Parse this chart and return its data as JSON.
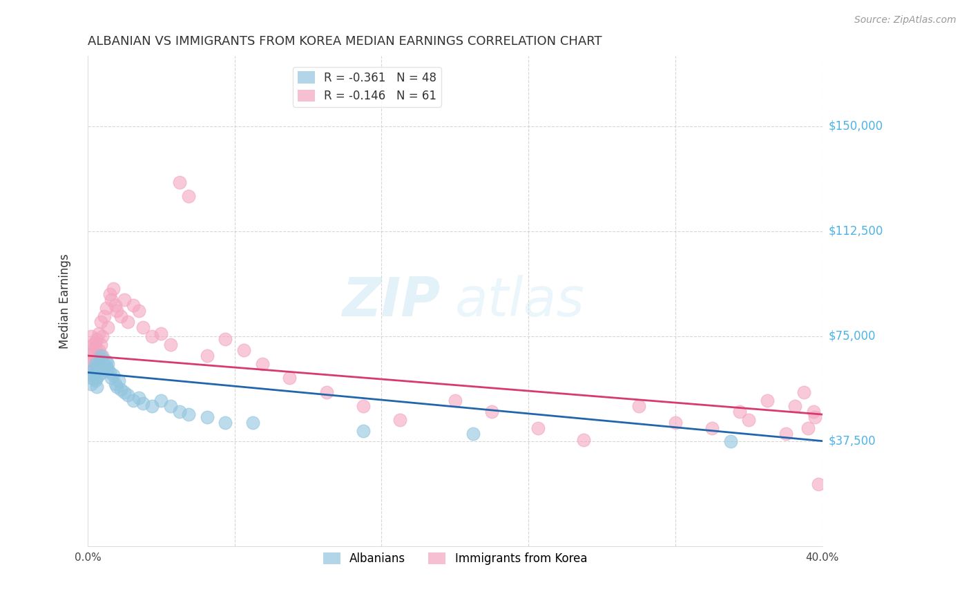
{
  "title": "ALBANIAN VS IMMIGRANTS FROM KOREA MEDIAN EARNINGS CORRELATION CHART",
  "source": "Source: ZipAtlas.com",
  "ylabel": "Median Earnings",
  "xlim": [
    0.0,
    0.4
  ],
  "ylim": [
    0,
    175000
  ],
  "yticks": [
    37500,
    75000,
    112500,
    150000
  ],
  "ytick_labels": [
    "$37,500",
    "$75,000",
    "$112,500",
    "$150,000"
  ],
  "xticks": [
    0.0,
    0.08,
    0.16,
    0.24,
    0.32,
    0.4
  ],
  "xtick_labels": [
    "0.0%",
    "",
    "",
    "",
    "",
    "40.0%"
  ],
  "watermark_zip": "ZIP",
  "watermark_atlas": "atlas",
  "legend_label_alb": "R = -0.361   N = 48",
  "legend_label_kor": "R = -0.146   N = 61",
  "bottom_legend_albanians": "Albanians",
  "bottom_legend_korea": "Immigrants from Korea",
  "albanian_color": "#92c5de",
  "korea_color": "#f4a6c0",
  "albanian_line_color": "#2166ac",
  "korea_line_color": "#d63a6e",
  "background_color": "#ffffff",
  "grid_color": "#cccccc",
  "title_color": "#333333",
  "ytick_label_color": "#4db3e6",
  "albanian_x": [
    0.001,
    0.002,
    0.002,
    0.003,
    0.003,
    0.004,
    0.004,
    0.004,
    0.005,
    0.005,
    0.005,
    0.006,
    0.006,
    0.006,
    0.007,
    0.007,
    0.007,
    0.008,
    0.008,
    0.009,
    0.009,
    0.01,
    0.01,
    0.011,
    0.011,
    0.012,
    0.013,
    0.014,
    0.015,
    0.016,
    0.017,
    0.018,
    0.02,
    0.022,
    0.025,
    0.028,
    0.03,
    0.035,
    0.04,
    0.045,
    0.05,
    0.055,
    0.065,
    0.075,
    0.09,
    0.15,
    0.21,
    0.35
  ],
  "albanian_y": [
    62000,
    60000,
    58000,
    63000,
    61000,
    65000,
    59000,
    62000,
    64000,
    60000,
    57000,
    63000,
    61000,
    65000,
    67000,
    66000,
    68000,
    64000,
    62000,
    65000,
    63000,
    64000,
    66000,
    65000,
    63000,
    62000,
    60000,
    61000,
    58000,
    57000,
    59000,
    56000,
    55000,
    54000,
    52000,
    53000,
    51000,
    50000,
    52000,
    50000,
    48000,
    47000,
    46000,
    44000,
    44000,
    41000,
    40000,
    37500
  ],
  "korea_x": [
    0.001,
    0.001,
    0.002,
    0.002,
    0.003,
    0.003,
    0.003,
    0.004,
    0.004,
    0.005,
    0.005,
    0.006,
    0.006,
    0.007,
    0.007,
    0.008,
    0.008,
    0.009,
    0.01,
    0.011,
    0.012,
    0.013,
    0.014,
    0.015,
    0.016,
    0.018,
    0.02,
    0.022,
    0.025,
    0.028,
    0.03,
    0.035,
    0.04,
    0.045,
    0.05,
    0.055,
    0.065,
    0.075,
    0.085,
    0.095,
    0.11,
    0.13,
    0.15,
    0.17,
    0.2,
    0.22,
    0.245,
    0.27,
    0.3,
    0.32,
    0.34,
    0.355,
    0.36,
    0.37,
    0.38,
    0.385,
    0.39,
    0.392,
    0.395,
    0.396,
    0.398
  ],
  "korea_y": [
    70000,
    65000,
    75000,
    68000,
    72000,
    66000,
    69000,
    73000,
    71000,
    74000,
    67000,
    76000,
    70000,
    72000,
    80000,
    75000,
    68000,
    82000,
    85000,
    78000,
    90000,
    88000,
    92000,
    86000,
    84000,
    82000,
    88000,
    80000,
    86000,
    84000,
    78000,
    75000,
    76000,
    72000,
    130000,
    125000,
    68000,
    74000,
    70000,
    65000,
    60000,
    55000,
    50000,
    45000,
    52000,
    48000,
    42000,
    38000,
    50000,
    44000,
    42000,
    48000,
    45000,
    52000,
    40000,
    50000,
    55000,
    42000,
    48000,
    46000,
    22000
  ]
}
